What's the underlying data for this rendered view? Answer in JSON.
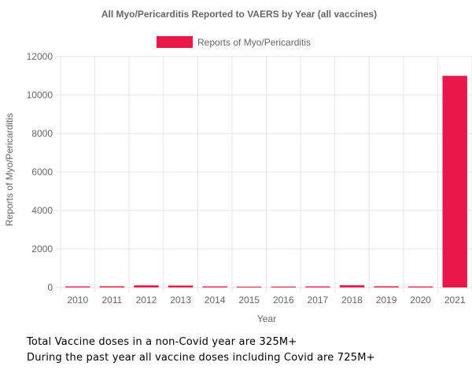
{
  "chart_data": {
    "type": "bar",
    "title": "All Myo/Pericarditis Reported to VAERS by Year (all vaccines)",
    "xlabel": "Year",
    "ylabel": "Reports of Myo/Pericarditis",
    "categories": [
      "2010",
      "2011",
      "2012",
      "2013",
      "2014",
      "2015",
      "2016",
      "2017",
      "2018",
      "2019",
      "2020",
      "2021"
    ],
    "series": [
      {
        "name": "Reports of Myo/Pericarditis",
        "values": [
          55,
          60,
          110,
          100,
          55,
          35,
          45,
          55,
          115,
          60,
          50,
          11000
        ],
        "color": "#e8184a"
      }
    ],
    "ylim": [
      0,
      12000
    ],
    "yticks": [
      "0",
      "2000",
      "4000",
      "6000",
      "8000",
      "10000",
      "12000"
    ],
    "grid": true,
    "legend": "top-center"
  },
  "notes": {
    "line1": "Total Vaccine doses in a non-Covid year are 325M+",
    "line2": "During the past year all vaccine doses including Covid are 725M+"
  }
}
